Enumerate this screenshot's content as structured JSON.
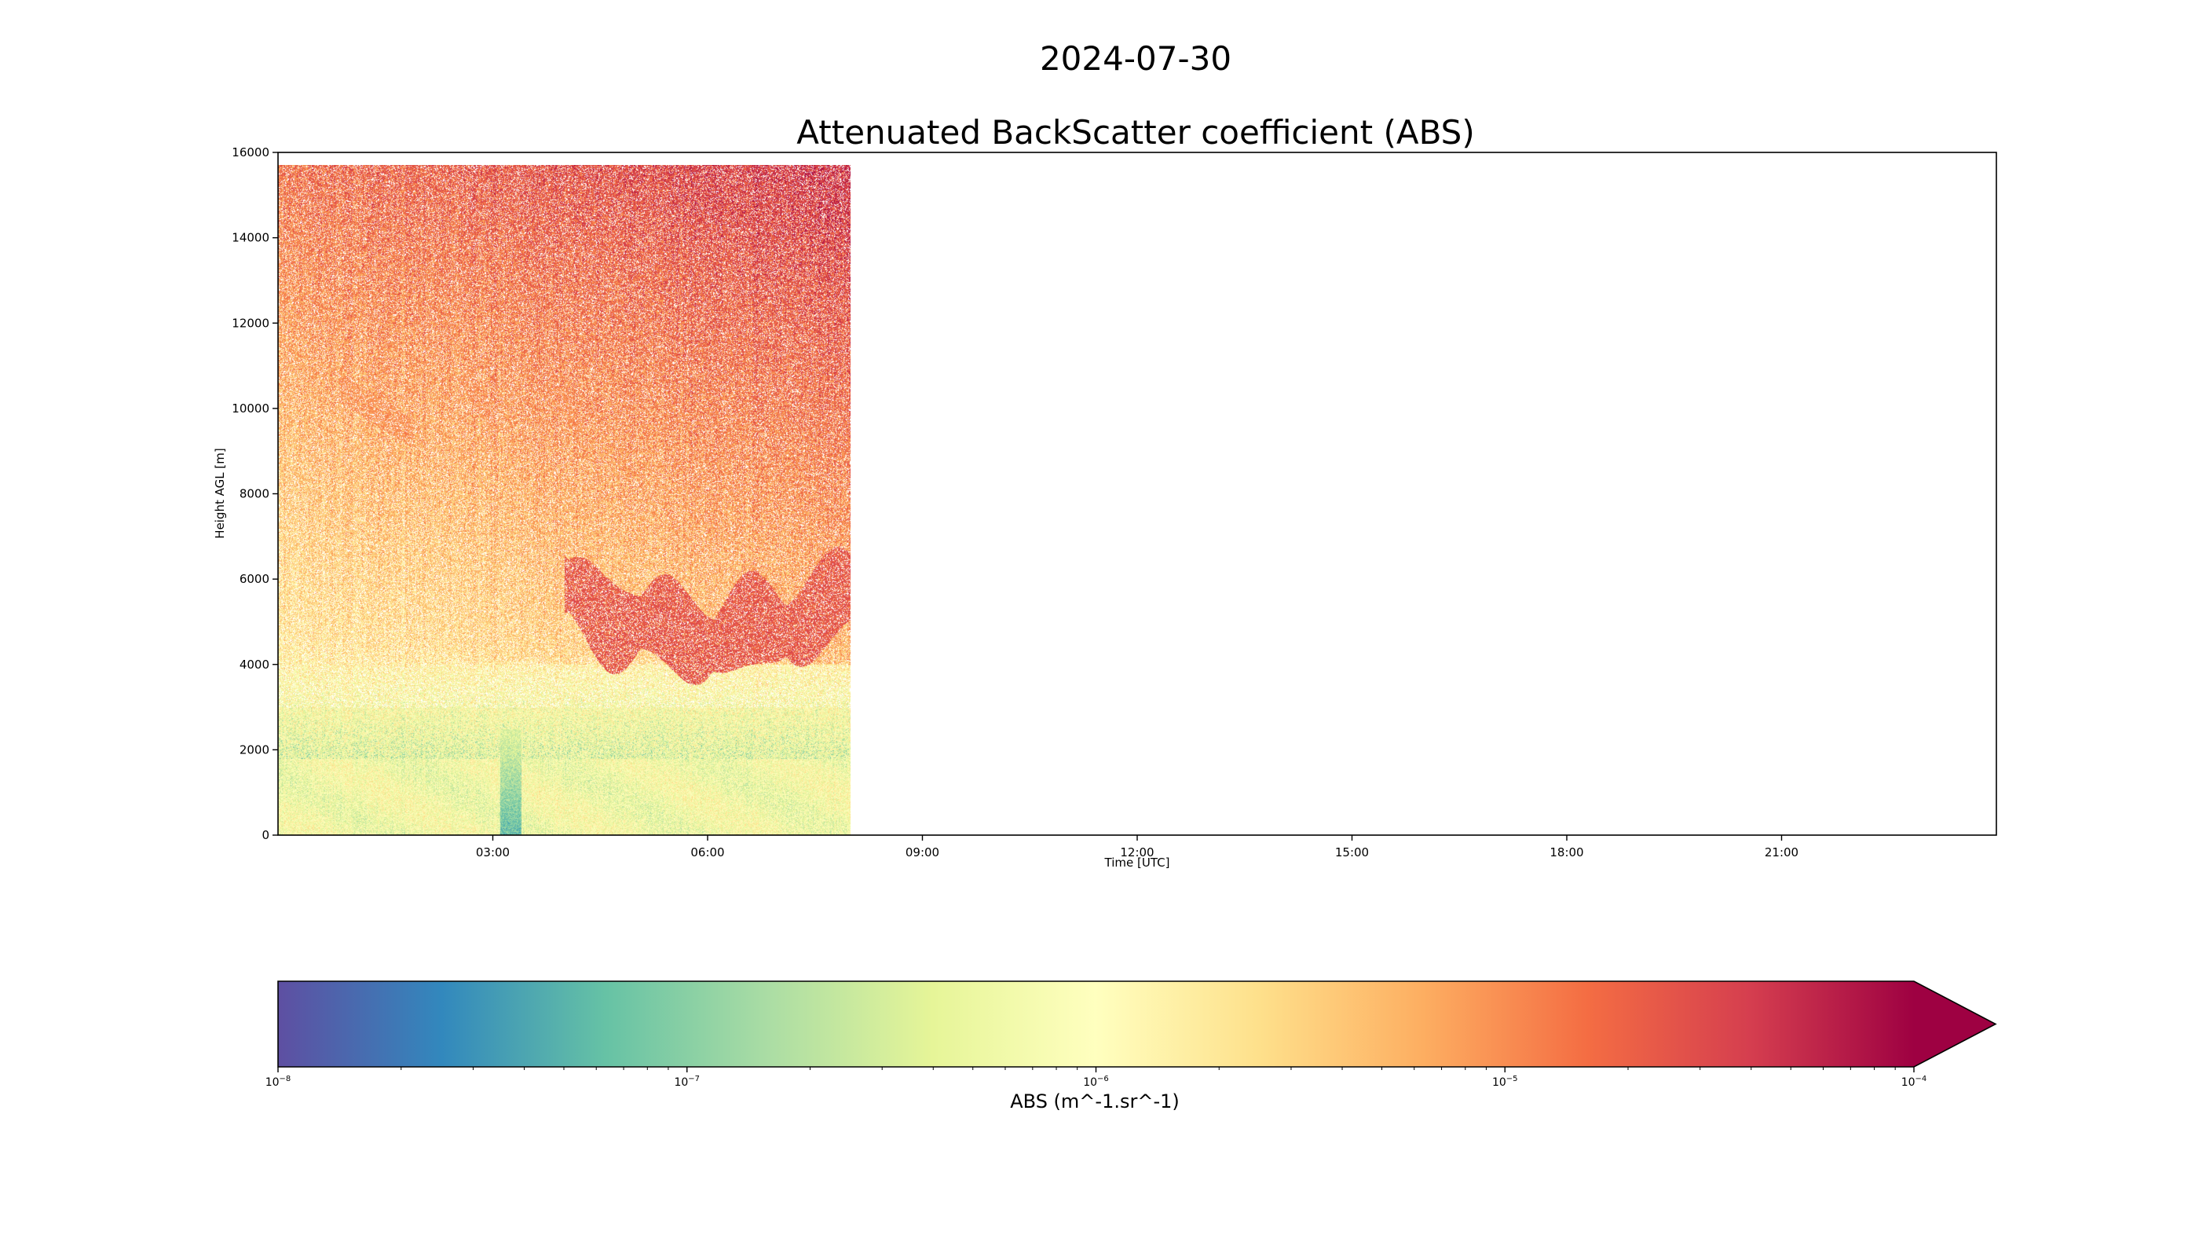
{
  "figure": {
    "suptitle": "2024-07-30"
  },
  "chart_data": {
    "type": "heatmap",
    "title": "Attenuated BackScatter coefficient (ABS)",
    "xlabel": "Time [UTC]",
    "ylabel": "Height AGL [m]",
    "xlim_hours": [
      0,
      24
    ],
    "ylim": [
      0,
      16000
    ],
    "x_ticks": [
      {
        "hour": 3,
        "label": "03:00"
      },
      {
        "hour": 6,
        "label": "06:00"
      },
      {
        "hour": 9,
        "label": "09:00"
      },
      {
        "hour": 12,
        "label": "12:00"
      },
      {
        "hour": 15,
        "label": "15:00"
      },
      {
        "hour": 18,
        "label": "18:00"
      },
      {
        "hour": 21,
        "label": "21:00"
      }
    ],
    "y_ticks": [
      0,
      2000,
      4000,
      6000,
      8000,
      10000,
      12000,
      14000,
      16000
    ],
    "data_coverage_hours": [
      0,
      8.0
    ],
    "data_top_height": 15700,
    "features": [
      {
        "name": "boundary layer",
        "height_range": [
          0,
          1800
        ],
        "log10_abs": -6.1
      },
      {
        "name": "precipitation column",
        "time_hours": [
          3.1,
          3.4
        ],
        "height_range": [
          0,
          2500
        ],
        "log10_abs": -7.2
      },
      {
        "name": "mid-level cloud layer",
        "time_hours": [
          4.0,
          8.0
        ],
        "height_range": [
          4000,
          7000
        ],
        "log10_abs": -4.3
      },
      {
        "name": "cirrus streaks",
        "time_hours": [
          0.8,
          4.5
        ],
        "height_range": [
          9000,
          11000
        ],
        "log10_abs": -4.9
      }
    ],
    "colorbar": {
      "label": "ABS (m^-1.sr^-1)",
      "scale": "log",
      "range": [
        1e-08,
        0.0001
      ],
      "colormap": "Spectral_r",
      "extend": "max",
      "tick_labels": [
        {
          "exp": -8,
          "base": "10",
          "sup": "−8"
        },
        {
          "exp": -7,
          "base": "10",
          "sup": "−7"
        },
        {
          "exp": -6,
          "base": "10",
          "sup": "−6"
        },
        {
          "exp": -5,
          "base": "10",
          "sup": "−5"
        },
        {
          "exp": -4,
          "base": "10",
          "sup": "−4"
        }
      ]
    }
  }
}
